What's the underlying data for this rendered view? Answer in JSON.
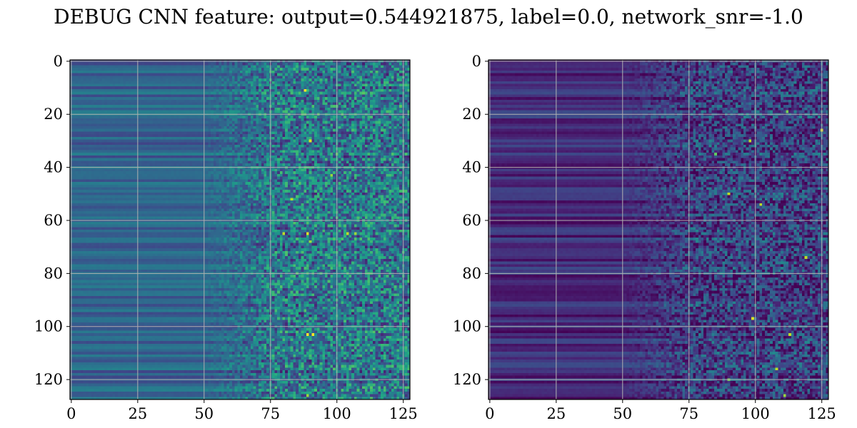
{
  "figure": {
    "title": "DEBUG CNN feature: output=0.544921875, label=0.0, network_snr=-1.0"
  },
  "chart_data": [
    {
      "type": "heatmap",
      "title": "",
      "xlabel": "",
      "ylabel": "",
      "colormap": "viridis",
      "grid": true,
      "grid_color": "#b0b0b0",
      "shape": [
        128,
        128
      ],
      "xlim": [
        -0.5,
        127.5
      ],
      "ylim": [
        127.5,
        -0.5
      ],
      "x_ticks": [
        0,
        25,
        50,
        75,
        100,
        125
      ],
      "y_ticks": [
        0,
        20,
        40,
        60,
        80,
        100,
        120
      ],
      "x_tick_labels": [
        "0",
        "25",
        "50",
        "75",
        "100",
        "125"
      ],
      "y_tick_labels": [
        "0",
        "20",
        "40",
        "60",
        "80",
        "100",
        "120"
      ],
      "description_of_values": "rows form horizontal bands; columns 0-50 smooth mid-low intensity, columns 75-127 noisy with sparse bright pixels",
      "base_level": 0.32,
      "noise_level": 0.55,
      "hot_spots": [
        {
          "row": 11,
          "col": 88,
          "value": 1.0
        },
        {
          "row": 30,
          "col": 90,
          "value": 0.95
        },
        {
          "row": 43,
          "col": 98,
          "value": 0.85
        },
        {
          "row": 52,
          "col": 83,
          "value": 0.9
        },
        {
          "row": 65,
          "col": 80,
          "value": 0.9
        },
        {
          "row": 65,
          "col": 89,
          "value": 0.95
        },
        {
          "row": 65,
          "col": 104,
          "value": 0.9
        },
        {
          "row": 65,
          "col": 107,
          "value": 0.85
        },
        {
          "row": 68,
          "col": 90,
          "value": 0.85
        },
        {
          "row": 103,
          "col": 89,
          "value": 1.0
        },
        {
          "row": 103,
          "col": 91,
          "value": 1.0
        },
        {
          "row": 126,
          "col": 89,
          "value": 0.85
        }
      ]
    },
    {
      "type": "heatmap",
      "title": "",
      "xlabel": "",
      "ylabel": "",
      "colormap": "viridis",
      "grid": true,
      "grid_color": "#b0b0b0",
      "shape": [
        128,
        128
      ],
      "xlim": [
        -0.5,
        127.5
      ],
      "ylim": [
        127.5,
        -0.5
      ],
      "x_ticks": [
        0,
        25,
        50,
        75,
        100,
        125
      ],
      "y_ticks": [
        0,
        20,
        40,
        60,
        80,
        100,
        120
      ],
      "x_tick_labels": [
        "0",
        "25",
        "50",
        "75",
        "100",
        "125"
      ],
      "y_tick_labels": [
        "0",
        "20",
        "40",
        "60",
        "80",
        "100",
        "120"
      ],
      "description_of_values": "rows form horizontal bands; columns 0-50 smooth dark purple, columns 75-127 noisy with sparse bright green/yellow pixels",
      "base_level": 0.12,
      "noise_level": 0.45,
      "hot_spots": [
        {
          "row": 19,
          "col": 112,
          "value": 0.8
        },
        {
          "row": 26,
          "col": 125,
          "value": 0.95
        },
        {
          "row": 30,
          "col": 98,
          "value": 0.9
        },
        {
          "row": 35,
          "col": 85,
          "value": 0.75
        },
        {
          "row": 50,
          "col": 90,
          "value": 0.9
        },
        {
          "row": 54,
          "col": 102,
          "value": 0.9
        },
        {
          "row": 74,
          "col": 119,
          "value": 0.9
        },
        {
          "row": 97,
          "col": 99,
          "value": 0.95
        },
        {
          "row": 103,
          "col": 113,
          "value": 0.9
        },
        {
          "row": 116,
          "col": 108,
          "value": 0.9
        },
        {
          "row": 120,
          "col": 90,
          "value": 0.8
        },
        {
          "row": 126,
          "col": 111,
          "value": 0.85
        }
      ]
    }
  ]
}
